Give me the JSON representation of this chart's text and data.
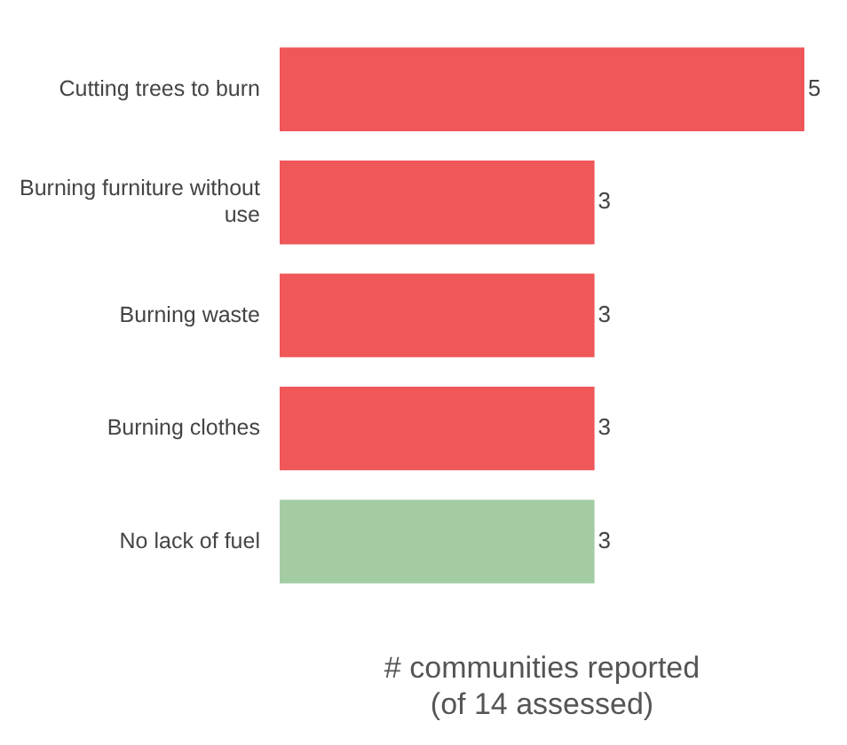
{
  "chart_data": {
    "type": "bar",
    "orientation": "horizontal",
    "categories": [
      "Cutting trees to burn",
      "Burning furniture without use",
      "Burning waste",
      "Burning clothes",
      "No lack of fuel"
    ],
    "values": [
      5,
      3,
      3,
      3,
      3
    ],
    "colors": [
      "#ef5759",
      "#ef5759",
      "#ef5759",
      "#ef5759",
      "#a3cca3"
    ],
    "xlabel": "# communities reported (of 14 assessed)",
    "data_labels": true,
    "tick_labels": "y",
    "grid": false
  }
}
